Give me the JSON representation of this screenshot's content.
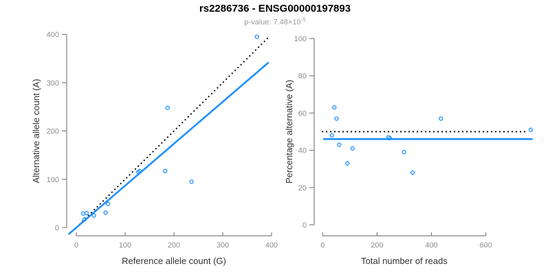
{
  "title": "rs2286736 - ENSG00000197893",
  "subtitle": {
    "prefix": "p-value: 7.48×10",
    "exponent": "-5"
  },
  "colors": {
    "accent_blue": "#1E90FF",
    "identity_black": "#000000",
    "axis_gray": "#808080",
    "tick_label_gray": "#8c8c8c",
    "axis_title_dark": "#333333",
    "subtitle_gray": "#9a9a9a",
    "background": "#ffffff"
  },
  "chart_data": [
    {
      "type": "scatter",
      "panel": "left",
      "xlabel": "Reference allele count (G)",
      "ylabel": "Alternative allele count (A)",
      "xticks": [
        0,
        100,
        200,
        300,
        400
      ],
      "yticks": [
        0,
        100,
        200,
        300,
        400
      ],
      "xlim": [
        0,
        400
      ],
      "ylim": [
        0,
        400
      ],
      "grid": false,
      "points": [
        [
          14,
          29
        ],
        [
          17,
          17
        ],
        [
          21,
          30
        ],
        [
          36,
          25
        ],
        [
          60,
          31
        ],
        [
          65,
          49
        ],
        [
          127,
          115
        ],
        [
          130,
          117
        ],
        [
          182,
          117
        ],
        [
          187,
          248
        ],
        [
          236,
          95
        ],
        [
          370,
          395
        ]
      ],
      "lines": [
        {
          "name": "identity-line",
          "style": "dashed",
          "color": "#000000",
          "from": [
            0,
            0
          ],
          "to": [
            393,
            393
          ]
        },
        {
          "name": "fit-line",
          "style": "solid",
          "color": "#1E90FF",
          "from": [
            -16,
            -14
          ],
          "to": [
            394,
            342
          ]
        }
      ]
    },
    {
      "type": "scatter",
      "panel": "right",
      "xlabel": "Total number of reads",
      "ylabel": "Percentage alternative (A)",
      "xticks": [
        0,
        200,
        400,
        600
      ],
      "yticks": [
        0,
        20,
        40,
        60,
        80,
        100
      ],
      "xlim": [
        0,
        600
      ],
      "ylim": [
        0,
        100
      ],
      "grid": false,
      "points": [
        [
          34,
          48
        ],
        [
          43,
          63
        ],
        [
          51,
          57
        ],
        [
          61,
          43
        ],
        [
          91,
          33
        ],
        [
          110,
          41
        ],
        [
          242,
          47
        ],
        [
          247,
          46.5
        ],
        [
          299,
          39
        ],
        [
          331,
          28
        ],
        [
          435,
          57
        ],
        [
          765,
          51
        ]
      ],
      "lines": [
        {
          "name": "expected-line",
          "style": "dashed",
          "color": "#000000",
          "from": [
            -3,
            50
          ],
          "to": [
            755,
            50
          ]
        },
        {
          "name": "mean-line",
          "style": "solid",
          "color": "#1E90FF",
          "from": [
            2,
            46
          ],
          "to": [
            772,
            46
          ]
        }
      ]
    }
  ]
}
